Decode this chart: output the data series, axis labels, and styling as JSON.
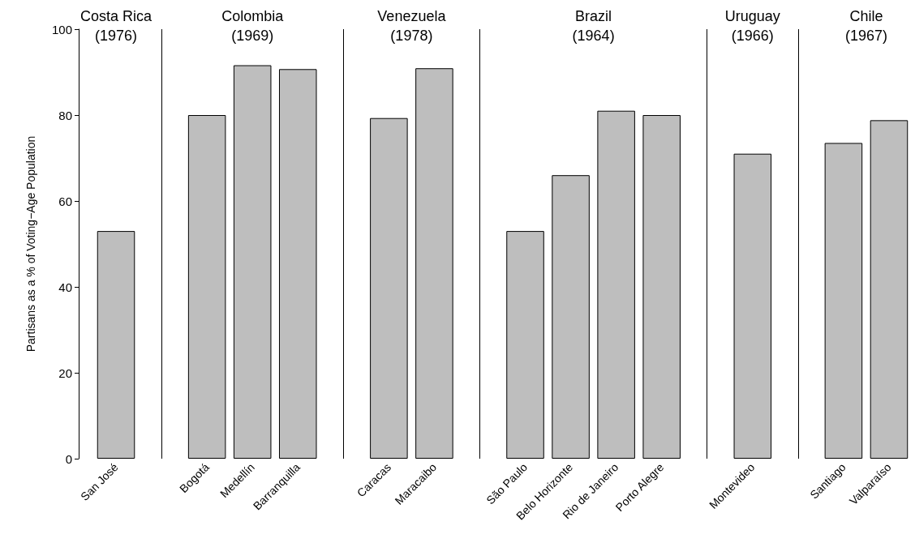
{
  "chart_data": {
    "type": "bar",
    "ylabel": "Partisans as a % of Voting−Age Population",
    "categories": [
      "San José",
      null,
      "Bogotá",
      "Medellín",
      "Barranquilla",
      null,
      "Caracas",
      "Maracaibo",
      null,
      "São Paulo",
      "Belo Horizonte",
      "Rio de Janeiro",
      "Porto Alegre",
      null,
      "Montevideo",
      null,
      "Santiago",
      "Valparaíso"
    ],
    "values": [
      53,
      null,
      80,
      91.6,
      90.7,
      null,
      79.3,
      90.9,
      null,
      53,
      66,
      81,
      80,
      null,
      71,
      null,
      73.5,
      78.8
    ],
    "color": "#bebebe",
    "annotations": [
      "Costa Rica\n(1976)",
      "Colombia\n(1969)",
      "Venezuela\n(1978)",
      "Brazil\n(1964)",
      "Uruguay\n(1966)",
      "Chile\n(1967)"
    ],
    "ylim": [
      0,
      100
    ],
    "yticks": [
      0,
      20,
      40,
      60,
      80,
      100
    ],
    "grid": false
  }
}
